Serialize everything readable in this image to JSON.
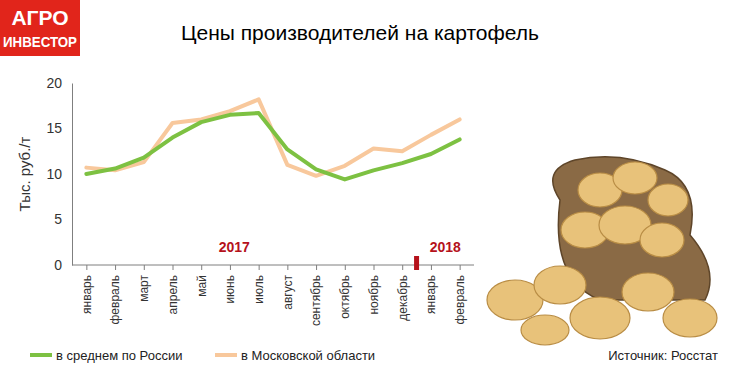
{
  "chart_data": {
    "type": "line",
    "title": "Цены производителей на картофель",
    "logo": [
      "АГРО",
      "ИНВЕСТОР"
    ],
    "y_label": "Тыс. руб./т",
    "categories": [
      "январь",
      "февраль",
      "март",
      "апрель",
      "май",
      "июнь",
      "июль",
      "август",
      "сентябрь",
      "октябрь",
      "ноябрь",
      "декабрь",
      "январь",
      "февраль"
    ],
    "series": [
      {
        "name": "в среднем по России",
        "color": "#7dc142",
        "values": [
          10.0,
          10.6,
          11.8,
          14.0,
          15.7,
          16.5,
          16.7,
          12.7,
          10.5,
          9.4,
          10.4,
          11.2,
          12.2,
          13.8
        ]
      },
      {
        "name": "в Московской области",
        "color": "#f8c89c",
        "values": [
          10.7,
          10.4,
          11.3,
          15.6,
          16.0,
          16.9,
          18.2,
          11.0,
          9.8,
          10.9,
          12.8,
          12.5,
          14.3,
          16.0
        ]
      }
    ],
    "ylim": [
      0,
      20
    ],
    "yticks": [
      0,
      5,
      10,
      15,
      20
    ],
    "grid": false,
    "legend": "bottom",
    "annotations": [
      "2017",
      "2018"
    ],
    "source": "Источник: Росстат"
  }
}
